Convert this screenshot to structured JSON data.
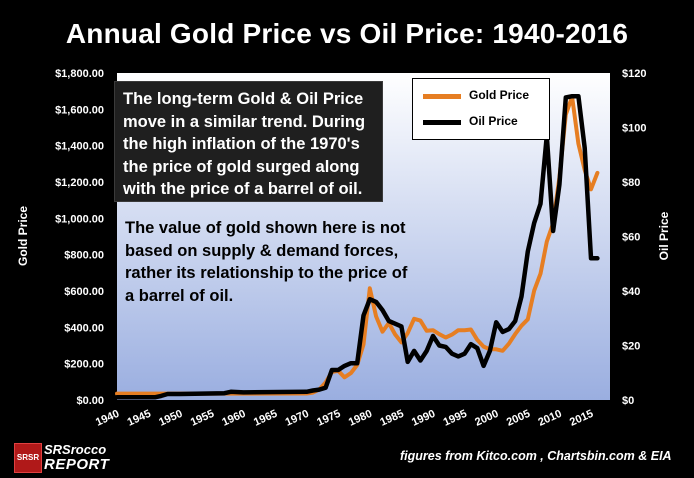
{
  "title": "Annual Gold Price vs Oil Price: 1940-2016",
  "callout_text": "The long-term Gold & Oil Price move in a similar trend. During the high inflation of the 1970's the price of gold surged along with the price of a barrel of oil.",
  "note_text": "The value of gold shown here is not based on supply & demand forces, rather its relationship to the price of a barrel of oil.",
  "logo": {
    "badge": "SRSR",
    "line1": "SRSrocco",
    "line2": "REPORT"
  },
  "source": "figures from Kitco.com , Chartsbin.com & EIA",
  "colors": {
    "gold": "#E67E22",
    "oil": "#000000",
    "plot_top": "#ffffff",
    "plot_bottom": "#9aaee0"
  },
  "chart_data": {
    "type": "line",
    "title": "Annual Gold Price vs Oil Price: 1940-2016",
    "xlabel": "",
    "ylabel": "Gold Price",
    "y2label": "Oil Price",
    "xlim": [
      1940,
      2018
    ],
    "ylim": [
      0,
      1800
    ],
    "y2lim": [
      0,
      120
    ],
    "x_ticks": [
      1940,
      1945,
      1950,
      1955,
      1960,
      1965,
      1970,
      1975,
      1980,
      1985,
      1990,
      1995,
      2000,
      2005,
      2010,
      2015
    ],
    "y_ticks": [
      "$0.00",
      "$200.00",
      "$400.00",
      "$600.00",
      "$800.00",
      "$1,000.00",
      "$1,200.00",
      "$1,400.00",
      "$1,600.00",
      "$1,800.00"
    ],
    "y2_ticks": [
      "$0",
      "$20",
      "$40",
      "$60",
      "$80",
      "$100",
      "$120"
    ],
    "legend_position": "top-right",
    "grid": false,
    "series": [
      {
        "name": "Gold Price",
        "axis": "left",
        "x": [
          1940,
          1950,
          1960,
          1970,
          1971,
          1972,
          1973,
          1974,
          1975,
          1976,
          1977,
          1978,
          1979,
          1980,
          1981,
          1982,
          1983,
          1984,
          1985,
          1986,
          1987,
          1988,
          1989,
          1990,
          1991,
          1992,
          1993,
          1994,
          1995,
          1996,
          1997,
          1998,
          1999,
          2000,
          2001,
          2002,
          2003,
          2004,
          2005,
          2006,
          2007,
          2008,
          2009,
          2010,
          2011,
          2012,
          2013,
          2014,
          2015,
          2016
        ],
        "values": [
          35,
          35,
          35,
          36,
          41,
          58,
          97,
          154,
          161,
          125,
          148,
          193,
          306,
          615,
          460,
          376,
          424,
          361,
          317,
          368,
          447,
          437,
          381,
          384,
          362,
          344,
          360,
          384,
          384,
          388,
          331,
          294,
          279,
          279,
          271,
          310,
          363,
          409,
          444,
          603,
          695,
          872,
          972,
          1224,
          1571,
          1669,
          1411,
          1266,
          1160,
          1250
        ]
      },
      {
        "name": "Oil Price",
        "axis": "right",
        "x": [
          1940,
          1946,
          1947,
          1948,
          1950,
          1957,
          1958,
          1960,
          1970,
          1971,
          1972,
          1973,
          1974,
          1975,
          1976,
          1977,
          1978,
          1979,
          1980,
          1981,
          1982,
          1983,
          1984,
          1985,
          1986,
          1987,
          1988,
          1989,
          1990,
          1991,
          1992,
          1993,
          1994,
          1995,
          1996,
          1997,
          1998,
          1999,
          2000,
          2001,
          2002,
          2003,
          2004,
          2005,
          2006,
          2007,
          2008,
          2009,
          2010,
          2011,
          2012,
          2013,
          2014,
          2015,
          2016
        ],
        "values": [
          1.0,
          1.0,
          1.5,
          2.2,
          2.2,
          2.5,
          3.0,
          2.8,
          3.0,
          3.5,
          3.8,
          4.5,
          11.0,
          11.0,
          12.5,
          13.5,
          13.5,
          31.0,
          37.0,
          36.0,
          33.0,
          29.0,
          28.0,
          27.0,
          14.0,
          18.0,
          14.5,
          18.0,
          23.5,
          20.0,
          19.5,
          17.0,
          16.0,
          17.0,
          20.5,
          19.0,
          12.5,
          18.0,
          28.5,
          25.0,
          26.0,
          29.0,
          38.0,
          54.5,
          65.0,
          72.0,
          97.0,
          62.0,
          79.0,
          111.0,
          111.5,
          111.5,
          92.5,
          52.0,
          52.0
        ]
      }
    ]
  }
}
